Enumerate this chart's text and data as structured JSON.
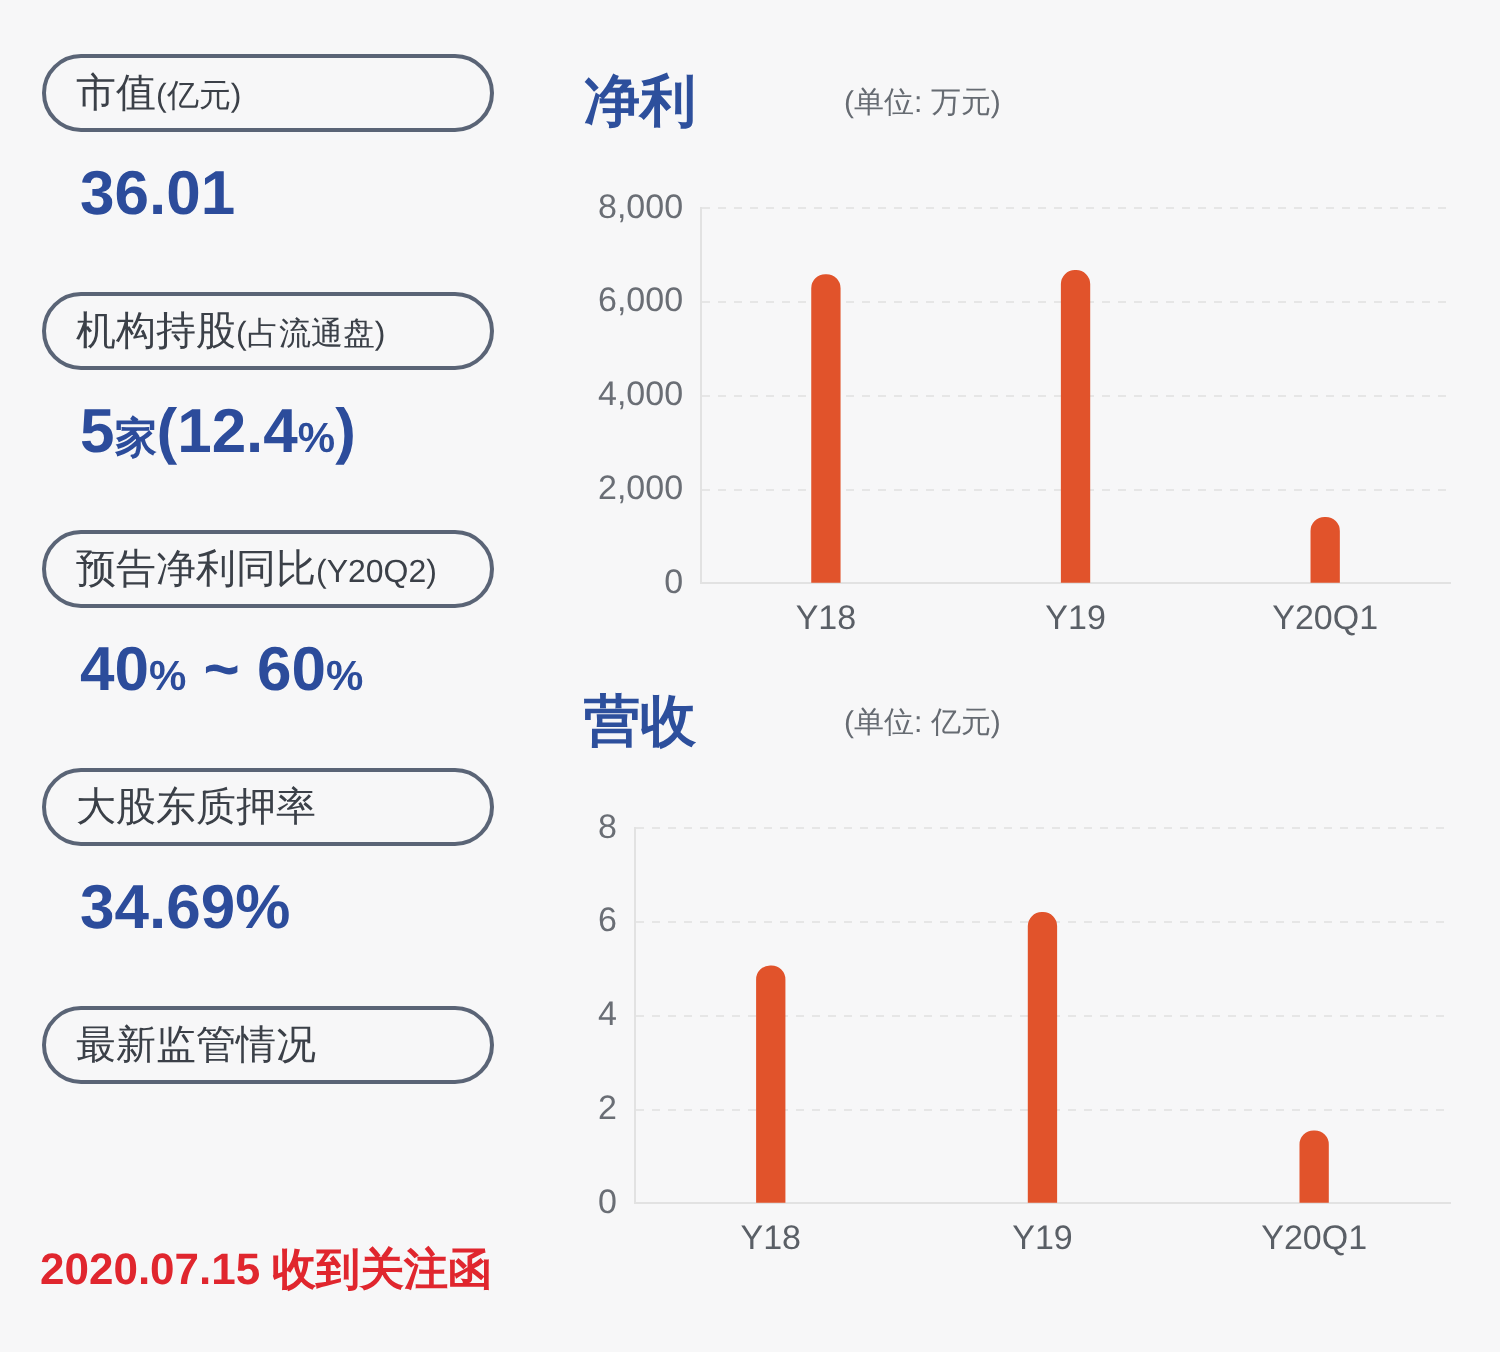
{
  "chart_data": [
    {
      "type": "other",
      "annotations": [
        "市值(亿元)",
        "36.01",
        "机构持股(占流通盘)",
        "5家(12.4%)",
        "预告净利同比(Y20Q2)",
        "40% ~ 60%",
        "大股东质押率",
        "34.69%",
        "最新监管情况",
        "2020.07.15 收到关注函"
      ]
    },
    {
      "type": "bar",
      "title": "净利",
      "subtitle": "(单位: 万元)",
      "categories": [
        "Y18",
        "Y19",
        "Y20Q1"
      ],
      "values": [
        6580,
        6670,
        1400
      ],
      "color": "#e1532b",
      "ylim": [
        0,
        8000
      ],
      "yticks": [
        0,
        {
          "value": 2000,
          "label": "2,000"
        },
        {
          "value": 4000,
          "label": "4,000"
        },
        {
          "value": 6000,
          "label": "6,000"
        },
        {
          "value": 8000,
          "label": "8,000"
        }
      ],
      "grid": "y"
    },
    {
      "type": "bar",
      "title": "营收",
      "subtitle": "(单位: 亿元)",
      "categories": [
        "Y18",
        "Y19",
        "Y20Q1"
      ],
      "values": [
        5.06,
        6.2,
        1.54
      ],
      "color": "#e1532b",
      "ylim": [
        0,
        8
      ],
      "yticks": [
        0,
        2,
        4,
        6,
        8
      ],
      "grid": "y"
    }
  ]
}
